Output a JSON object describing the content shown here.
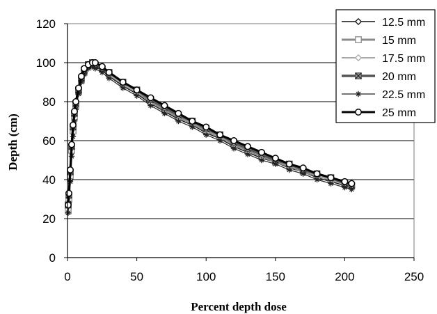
{
  "chart_data": {
    "type": "line",
    "title": "",
    "xlabel": "Percent depth dose",
    "ylabel": "Depth  (cm)",
    "xlim": [
      0,
      250
    ],
    "ylim": [
      0,
      120
    ],
    "xticks": [
      0,
      50,
      100,
      150,
      200,
      250
    ],
    "yticks": [
      0,
      20,
      40,
      60,
      80,
      100,
      120
    ],
    "grid": "horizontal",
    "legend_position": "top-right",
    "series": [
      {
        "name": "12.5 mm",
        "color": "#111111",
        "marker": "diamond",
        "x": [
          0.5,
          1,
          2,
          3,
          4,
          5,
          6,
          8,
          10,
          12,
          15,
          18,
          20,
          25,
          30,
          40,
          50,
          60,
          70,
          80,
          90,
          100,
          110,
          120,
          130,
          140,
          150,
          160,
          170,
          180,
          190,
          200,
          205
        ],
        "y": [
          25,
          29,
          40,
          54,
          64,
          71,
          77,
          85,
          91,
          95,
          98,
          99,
          98,
          96,
          93,
          88,
          84,
          79,
          75,
          71,
          68,
          64,
          61,
          57,
          54,
          51,
          49,
          46,
          44,
          41,
          39,
          37,
          36
        ]
      },
      {
        "name": "15 mm",
        "color": "#8a8a8a",
        "marker": "square",
        "x": [
          0.5,
          1,
          2,
          3,
          4,
          5,
          6,
          8,
          10,
          12,
          15,
          18,
          20,
          25,
          30,
          40,
          50,
          60,
          70,
          80,
          90,
          100,
          110,
          120,
          130,
          140,
          150,
          160,
          170,
          180,
          190,
          200,
          205
        ],
        "y": [
          24,
          30,
          42,
          55,
          65,
          72,
          78,
          85,
          91,
          95,
          98,
          99,
          99,
          97,
          94,
          89,
          85,
          80,
          76,
          72,
          69,
          65,
          62,
          58,
          55,
          52,
          49,
          47,
          44,
          42,
          40,
          38,
          37
        ]
      },
      {
        "name": "17.5 mm",
        "color": "#a8a8a8",
        "marker": "diamond",
        "x": [
          0.5,
          1,
          2,
          3,
          4,
          5,
          6,
          8,
          10,
          12,
          15,
          18,
          20,
          25,
          30,
          40,
          50,
          60,
          70,
          80,
          90,
          100,
          110,
          120,
          130,
          140,
          150,
          160,
          170,
          180,
          190,
          200,
          205
        ],
        "y": [
          26,
          31,
          43,
          56,
          66,
          73,
          78,
          86,
          92,
          96,
          99,
          99,
          99,
          97,
          94,
          89,
          85,
          81,
          77,
          73,
          69,
          66,
          62,
          59,
          56,
          53,
          50,
          47,
          45,
          42,
          40,
          38,
          37
        ]
      },
      {
        "name": "20 mm",
        "color": "#555555",
        "marker": "x-square",
        "x": [
          0.5,
          1,
          2,
          3,
          4,
          5,
          6,
          8,
          10,
          12,
          15,
          18,
          20,
          25,
          30,
          40,
          50,
          60,
          70,
          80,
          90,
          100,
          110,
          120,
          130,
          140,
          150,
          160,
          170,
          180,
          190,
          200,
          205
        ],
        "y": [
          27,
          32,
          44,
          57,
          67,
          74,
          79,
          86,
          92,
          96,
          99,
          100,
          99,
          97,
          95,
          90,
          86,
          81,
          77,
          73,
          70,
          66,
          63,
          59,
          56,
          53,
          50,
          48,
          45,
          43,
          41,
          38,
          37
        ]
      },
      {
        "name": "22.5 mm",
        "color": "#222222",
        "marker": "star",
        "x": [
          0.5,
          1,
          2,
          3,
          4,
          5,
          6,
          8,
          10,
          12,
          15,
          18,
          20,
          25,
          30,
          40,
          50,
          60,
          70,
          80,
          90,
          100,
          110,
          120,
          130,
          140,
          150,
          160,
          170,
          180,
          190,
          200,
          205
        ],
        "y": [
          23,
          28,
          39,
          52,
          62,
          70,
          76,
          84,
          90,
          94,
          97,
          98,
          97,
          95,
          92,
          87,
          83,
          78,
          74,
          70,
          67,
          63,
          60,
          56,
          53,
          50,
          48,
          45,
          43,
          40,
          38,
          36,
          35
        ]
      },
      {
        "name": "25 mm",
        "color": "#000000",
        "marker": "circle",
        "x": [
          0.5,
          1,
          2,
          3,
          4,
          5,
          6,
          8,
          10,
          12,
          15,
          18,
          20,
          25,
          30,
          40,
          50,
          60,
          70,
          80,
          90,
          100,
          110,
          120,
          130,
          140,
          150,
          160,
          170,
          180,
          190,
          200,
          205
        ],
        "y": [
          27,
          33,
          45,
          58,
          68,
          75,
          80,
          87,
          93,
          97,
          99,
          100,
          100,
          98,
          95,
          90,
          86,
          82,
          78,
          74,
          70,
          67,
          63,
          60,
          57,
          54,
          51,
          48,
          46,
          43,
          41,
          39,
          38
        ]
      }
    ]
  }
}
